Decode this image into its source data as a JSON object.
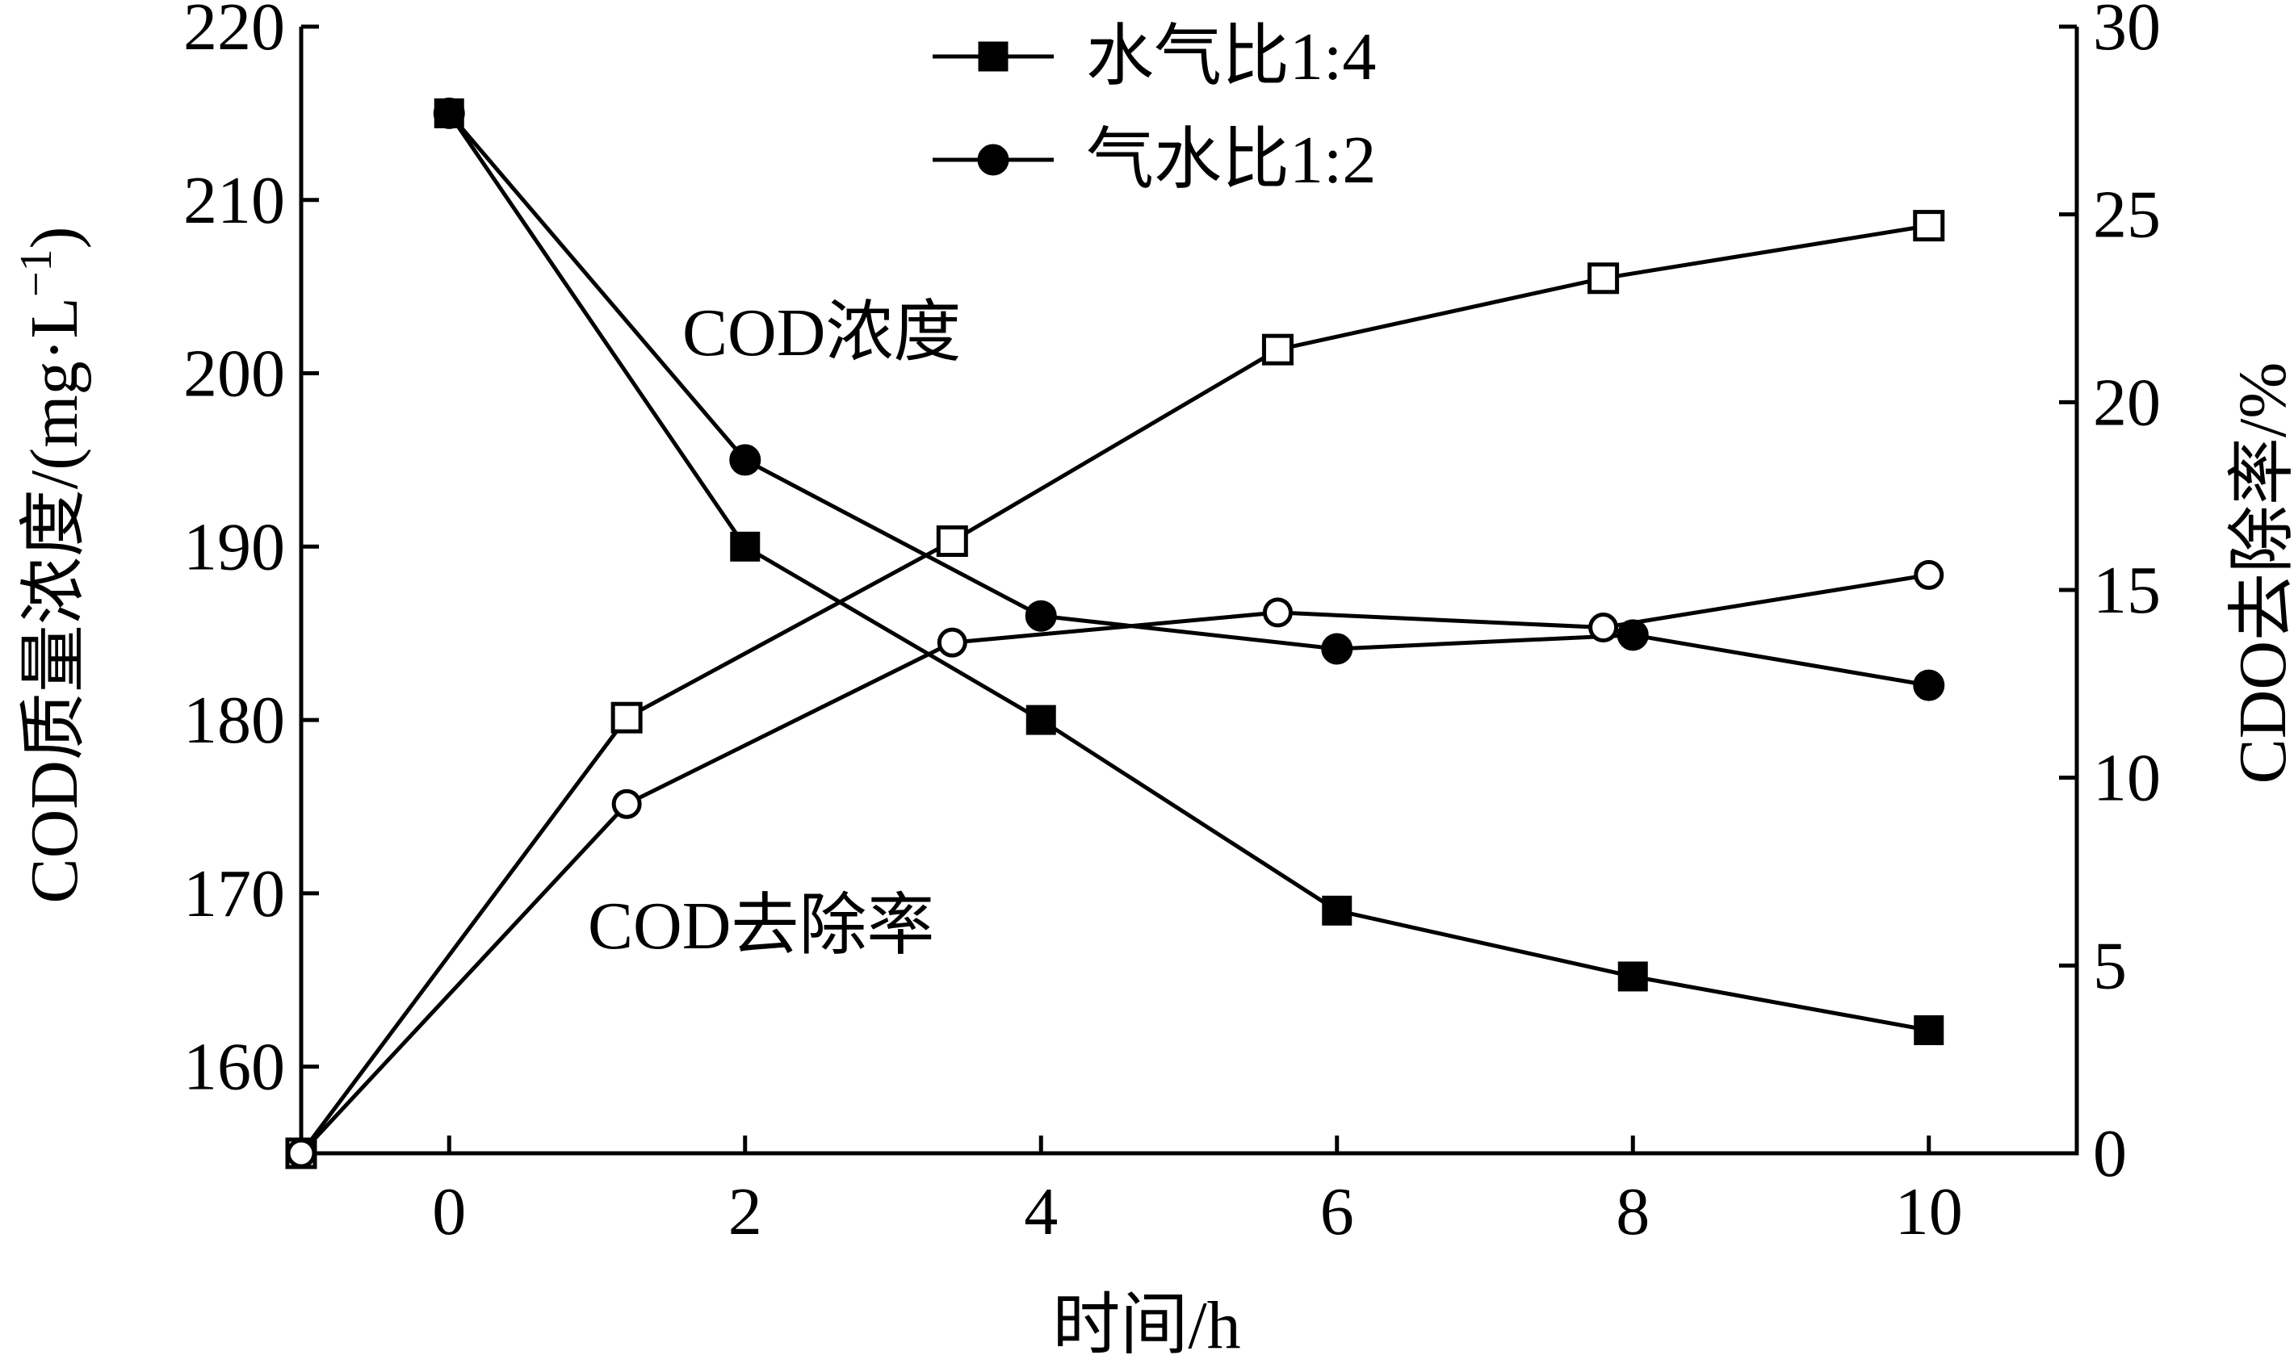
{
  "chart_data": {
    "type": "line",
    "x_axis": {
      "label": "时间/h",
      "ticks": [
        0,
        2,
        4,
        6,
        8,
        10
      ],
      "range": [
        -1,
        11
      ]
    },
    "y_left": {
      "label": "COD质量浓度/(mg·L",
      "label_superscript": "−1",
      "label_suffix": ")",
      "ticks": [
        160,
        170,
        180,
        190,
        200,
        210,
        220
      ],
      "range": [
        155,
        220
      ]
    },
    "y_right": {
      "label": "CDO去除率/%",
      "ticks": [
        0,
        5,
        10,
        15,
        20,
        25,
        30
      ],
      "range": [
        0,
        30
      ]
    },
    "legend": {
      "position": "top-center",
      "entries": [
        {
          "name": "水气比1:4",
          "marker": "square-filled"
        },
        {
          "name": "气水比1:2",
          "marker": "circle-filled"
        }
      ]
    },
    "annotations": [
      "COD浓度",
      "COD去除率"
    ],
    "series": [
      {
        "name": "水气比1:4",
        "metric": "COD浓度",
        "axis": "left",
        "marker": "square-filled",
        "x": [
          0,
          2,
          4,
          6,
          8,
          10
        ],
        "y": [
          215,
          190,
          180,
          169,
          165.2,
          162.1
        ]
      },
      {
        "name": "气水比1:2",
        "metric": "COD浓度",
        "axis": "left",
        "marker": "circle-filled",
        "x": [
          0,
          2,
          4,
          6,
          8,
          10
        ],
        "y": [
          215,
          195,
          186,
          184.1,
          184.9,
          182
        ]
      },
      {
        "name": "水气比1:4",
        "metric": "COD去除率",
        "axis": "right",
        "marker": "square-open",
        "x": [
          -1,
          1.2,
          3.4,
          5.6,
          7.8,
          10
        ],
        "y": [
          0,
          11.6,
          16.3,
          21.4,
          23.3,
          24.7
        ]
      },
      {
        "name": "气水比1:2",
        "metric": "COD去除率",
        "axis": "right",
        "marker": "circle-open",
        "x": [
          -1,
          1.2,
          3.4,
          5.6,
          7.8,
          10
        ],
        "y": [
          0,
          9.3,
          13.6,
          14.4,
          14,
          15.4
        ]
      }
    ]
  }
}
